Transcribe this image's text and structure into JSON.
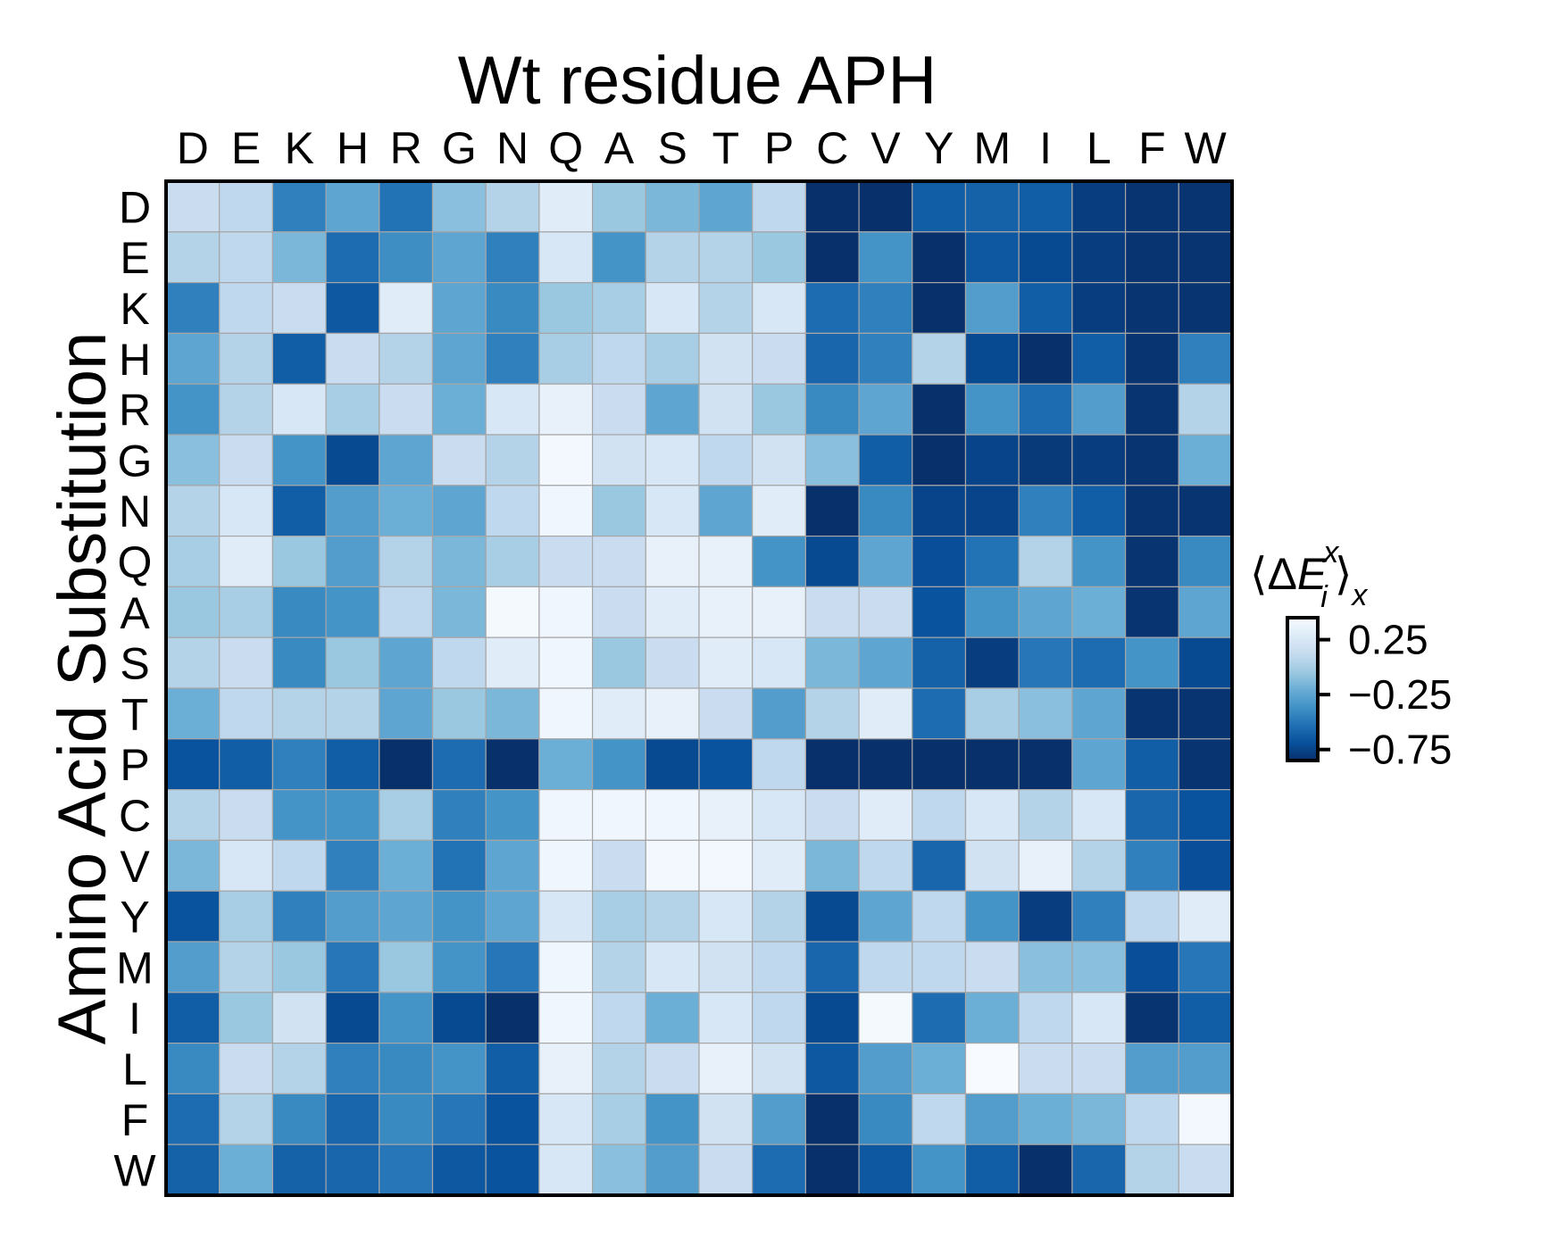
{
  "chart_data": {
    "type": "heatmap",
    "title": "Wt residue APH",
    "xlabel": "Wt residue APH",
    "ylabel": "Amino Acid Substitution",
    "x_categories": [
      "D",
      "E",
      "K",
      "H",
      "R",
      "G",
      "N",
      "Q",
      "A",
      "S",
      "T",
      "P",
      "C",
      "V",
      "Y",
      "M",
      "I",
      "L",
      "F",
      "W"
    ],
    "y_categories": [
      "D",
      "E",
      "K",
      "H",
      "R",
      "G",
      "N",
      "Q",
      "A",
      "S",
      "T",
      "P",
      "C",
      "V",
      "Y",
      "M",
      "I",
      "L",
      "F",
      "W"
    ],
    "colorbar": {
      "label": "⟨ΔE_i^x⟩_x",
      "ticks": [
        0.25,
        -0.25,
        -0.75
      ],
      "tick_labels": [
        "0.25",
        "−0.25",
        "−0.75"
      ],
      "vmin": -0.85,
      "vmax": 0.45,
      "colormap": "Blues (reversed)",
      "colors": [
        "#08306b",
        "#08519c",
        "#2171b5",
        "#4292c6",
        "#6baed6",
        "#9ecae1",
        "#c6dbef",
        "#deebf7",
        "#f7fbff"
      ]
    },
    "grid_color": "#a6a6a6",
    "values": [
      [
        0.15,
        0.1,
        -0.45,
        -0.25,
        -0.52,
        -0.1,
        0.05,
        0.3,
        -0.05,
        -0.15,
        -0.25,
        0.1,
        -0.85,
        -0.85,
        -0.62,
        -0.6,
        -0.62,
        -0.78,
        -0.83,
        -0.83
      ],
      [
        0.05,
        0.1,
        -0.15,
        -0.55,
        -0.38,
        -0.25,
        -0.45,
        0.25,
        -0.35,
        0.05,
        0.05,
        -0.05,
        -0.85,
        -0.35,
        -0.85,
        -0.65,
        -0.72,
        -0.78,
        -0.83,
        -0.83
      ],
      [
        -0.45,
        0.1,
        0.15,
        -0.65,
        0.3,
        -0.25,
        -0.4,
        -0.05,
        0.0,
        0.25,
        0.05,
        0.25,
        -0.55,
        -0.45,
        -0.85,
        -0.3,
        -0.62,
        -0.78,
        -0.83,
        -0.83
      ],
      [
        -0.25,
        0.05,
        -0.62,
        0.15,
        0.05,
        -0.25,
        -0.45,
        0.0,
        0.1,
        0.0,
        0.2,
        0.15,
        -0.58,
        -0.45,
        0.05,
        -0.72,
        -0.85,
        -0.62,
        -0.83,
        -0.45
      ],
      [
        -0.35,
        0.05,
        0.25,
        0.0,
        0.15,
        -0.2,
        0.25,
        0.35,
        0.15,
        -0.25,
        0.2,
        -0.05,
        -0.4,
        -0.25,
        -0.85,
        -0.35,
        -0.55,
        -0.3,
        -0.83,
        0.05
      ],
      [
        -0.1,
        0.15,
        -0.35,
        -0.72,
        -0.25,
        0.15,
        0.05,
        0.42,
        0.2,
        0.25,
        0.1,
        0.2,
        -0.1,
        -0.62,
        -0.85,
        -0.75,
        -0.8,
        -0.78,
        -0.83,
        -0.2
      ],
      [
        0.05,
        0.25,
        -0.62,
        -0.3,
        -0.2,
        -0.25,
        0.1,
        0.4,
        -0.05,
        0.25,
        -0.25,
        0.3,
        -0.85,
        -0.4,
        -0.75,
        -0.75,
        -0.45,
        -0.62,
        -0.83,
        -0.83
      ],
      [
        0.0,
        0.3,
        -0.05,
        -0.3,
        0.05,
        -0.15,
        0.0,
        0.15,
        0.15,
        0.35,
        0.35,
        -0.35,
        -0.72,
        -0.25,
        -0.7,
        -0.52,
        0.05,
        -0.35,
        -0.83,
        -0.4
      ],
      [
        -0.05,
        0.0,
        -0.4,
        -0.35,
        0.1,
        -0.15,
        0.43,
        0.4,
        0.15,
        0.3,
        0.35,
        0.35,
        0.15,
        0.15,
        -0.68,
        -0.35,
        -0.25,
        -0.2,
        -0.83,
        -0.25
      ],
      [
        0.05,
        0.15,
        -0.4,
        -0.05,
        -0.25,
        0.1,
        0.3,
        0.4,
        -0.05,
        0.15,
        0.3,
        0.25,
        -0.15,
        -0.25,
        -0.6,
        -0.78,
        -0.5,
        -0.55,
        -0.35,
        -0.72
      ],
      [
        -0.2,
        0.1,
        0.05,
        0.05,
        -0.25,
        -0.05,
        -0.15,
        0.4,
        0.3,
        0.35,
        0.15,
        -0.3,
        0.05,
        0.3,
        -0.55,
        0.0,
        -0.1,
        -0.25,
        -0.83,
        -0.83
      ],
      [
        -0.68,
        -0.62,
        -0.45,
        -0.62,
        -0.85,
        -0.55,
        -0.85,
        -0.2,
        -0.35,
        -0.72,
        -0.68,
        0.1,
        -0.85,
        -0.85,
        -0.85,
        -0.85,
        -0.85,
        -0.25,
        -0.62,
        -0.83
      ],
      [
        0.05,
        0.15,
        -0.35,
        -0.35,
        0.0,
        -0.45,
        -0.35,
        0.4,
        0.4,
        0.4,
        0.35,
        0.25,
        0.15,
        0.3,
        0.1,
        0.25,
        0.05,
        0.25,
        -0.58,
        -0.68
      ],
      [
        -0.15,
        0.25,
        0.1,
        -0.45,
        -0.2,
        -0.52,
        -0.25,
        0.4,
        0.15,
        0.42,
        0.42,
        0.3,
        -0.15,
        0.1,
        -0.58,
        0.2,
        0.35,
        0.05,
        -0.45,
        -0.7
      ],
      [
        -0.68,
        0.0,
        -0.45,
        -0.3,
        -0.25,
        -0.35,
        -0.25,
        0.25,
        0.0,
        0.05,
        0.25,
        0.05,
        -0.72,
        -0.25,
        0.1,
        -0.35,
        -0.78,
        -0.45,
        0.1,
        0.3
      ],
      [
        -0.3,
        0.05,
        -0.05,
        -0.5,
        -0.05,
        -0.35,
        -0.5,
        0.4,
        0.05,
        0.25,
        0.2,
        0.1,
        -0.58,
        0.1,
        0.1,
        0.15,
        -0.1,
        -0.1,
        -0.7,
        -0.5
      ],
      [
        -0.62,
        -0.05,
        0.2,
        -0.72,
        -0.35,
        -0.72,
        -0.85,
        0.4,
        0.1,
        -0.2,
        0.25,
        0.1,
        -0.72,
        0.43,
        -0.55,
        -0.2,
        0.1,
        0.25,
        -0.83,
        -0.62
      ],
      [
        -0.4,
        0.15,
        0.05,
        -0.45,
        -0.4,
        -0.35,
        -0.62,
        0.35,
        0.05,
        0.15,
        0.35,
        0.2,
        -0.65,
        -0.3,
        -0.2,
        0.45,
        0.15,
        0.15,
        -0.3,
        -0.3
      ],
      [
        -0.55,
        0.05,
        -0.4,
        -0.58,
        -0.4,
        -0.5,
        -0.68,
        0.25,
        0.0,
        -0.35,
        0.2,
        -0.3,
        -0.85,
        -0.4,
        0.1,
        -0.3,
        -0.2,
        -0.15,
        0.1,
        0.42
      ],
      [
        -0.6,
        -0.2,
        -0.6,
        -0.58,
        -0.5,
        -0.65,
        -0.68,
        0.25,
        -0.1,
        -0.3,
        0.15,
        -0.55,
        -0.85,
        -0.65,
        -0.35,
        -0.62,
        -0.85,
        -0.58,
        0.05,
        0.15
      ]
    ]
  }
}
